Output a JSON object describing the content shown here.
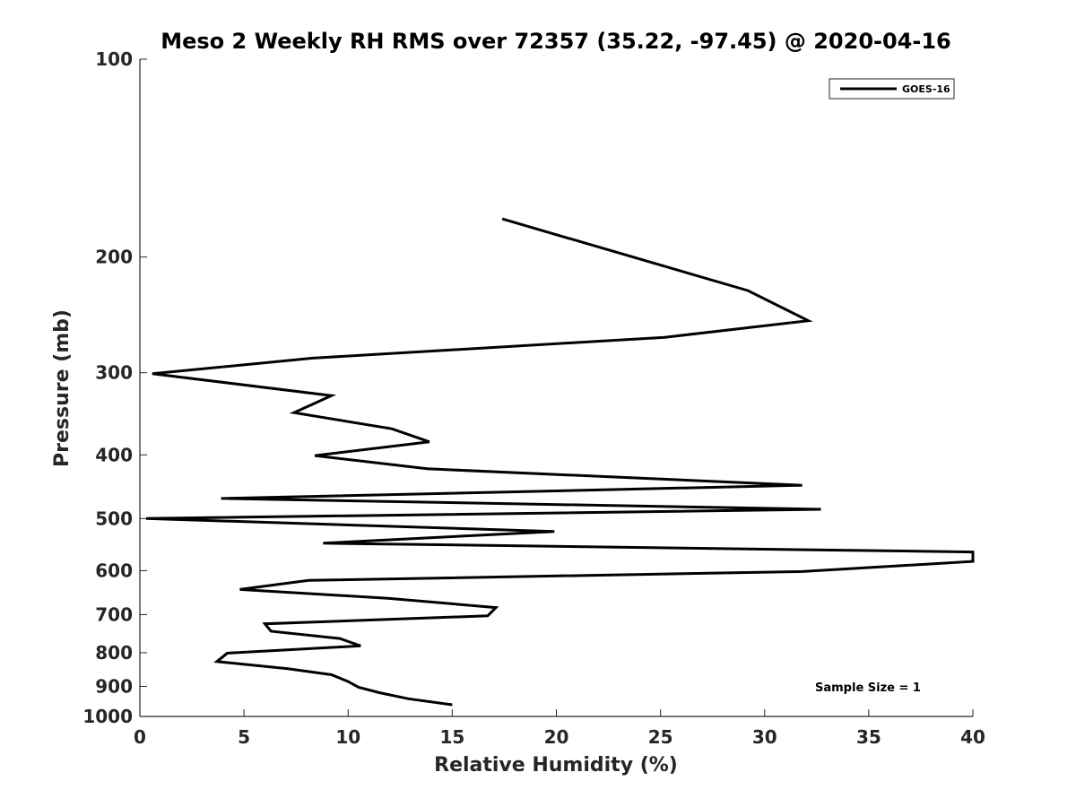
{
  "chart_data": {
    "type": "line",
    "title": "Meso 2 Weekly RH RMS over 72357 (35.22, -97.45) @ 2020-04-16",
    "xlabel": "Relative Humidity (%)",
    "ylabel": "Pressure (mb)",
    "xlim": [
      0,
      40
    ],
    "ylim": [
      100,
      1000
    ],
    "y_scale": "log",
    "y_reversed": true,
    "grid": false,
    "x_ticks": [
      "0",
      "5",
      "10",
      "15",
      "20",
      "25",
      "30",
      "35",
      "40"
    ],
    "y_ticks": [
      "100",
      "200",
      "300",
      "400",
      "500",
      "600",
      "700",
      "800",
      "900",
      "1000"
    ],
    "legend": {
      "position": "top-right",
      "entries": [
        "GOES-16"
      ]
    },
    "annotation": "Sample Size = 1",
    "series": [
      {
        "name": "GOES-16",
        "color": "#000000",
        "points": [
          [
            17.4,
            175
          ],
          [
            29.2,
            225
          ],
          [
            32.1,
            250
          ],
          [
            25.2,
            265
          ],
          [
            8.3,
            285
          ],
          [
            0.6,
            301
          ],
          [
            9.2,
            325
          ],
          [
            7.4,
            345
          ],
          [
            12.1,
            365
          ],
          [
            13.9,
            382
          ],
          [
            8.4,
            401
          ],
          [
            13.8,
            420
          ],
          [
            31.8,
            445
          ],
          [
            3.9,
            466
          ],
          [
            32.7,
            484
          ],
          [
            0.3,
            500
          ],
          [
            19.9,
            523
          ],
          [
            8.8,
            545
          ],
          [
            40.0,
            562
          ],
          [
            40.0,
            581
          ],
          [
            31.8,
            602
          ],
          [
            8.1,
            621
          ],
          [
            4.8,
            641
          ],
          [
            11.9,
            661
          ],
          [
            17.1,
            683
          ],
          [
            16.7,
            703
          ],
          [
            6.0,
            723
          ],
          [
            6.3,
            742
          ],
          [
            9.6,
            761
          ],
          [
            10.6,
            781
          ],
          [
            4.2,
            801
          ],
          [
            3.7,
            825
          ],
          [
            7.1,
            846
          ],
          [
            9.2,
            864
          ],
          [
            10.0,
            885
          ],
          [
            10.5,
            903
          ],
          [
            11.5,
            920
          ],
          [
            12.9,
            940
          ],
          [
            15.0,
            960
          ]
        ]
      }
    ]
  }
}
